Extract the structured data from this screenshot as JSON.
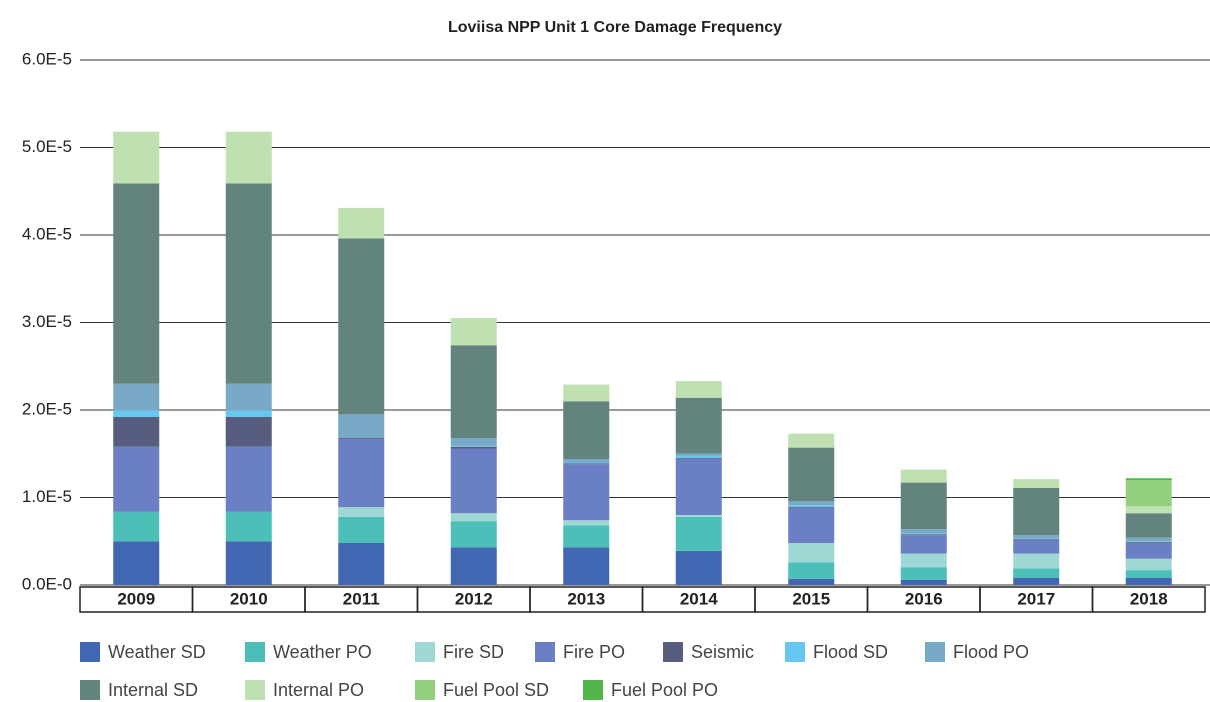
{
  "chart_data": {
    "type": "stacked_bar",
    "title": "Loviisa NPP Unit 1 Core Damage Frequency",
    "categories": [
      "2009",
      "2010",
      "2011",
      "2012",
      "2013",
      "2014",
      "2015",
      "2016",
      "2017",
      "2018"
    ],
    "series": [
      {
        "name": "Weather SD",
        "color": "#4267b2",
        "values": [
          5e-06,
          5e-06,
          4.8e-06,
          4.3e-06,
          4.3e-06,
          3.9e-06,
          7e-07,
          6e-07,
          8e-07,
          8e-07
        ]
      },
      {
        "name": "Weather PO",
        "color": "#4bbfb8",
        "values": [
          3.4e-06,
          3.4e-06,
          3e-06,
          3e-06,
          2.5e-06,
          3.9e-06,
          1.9e-06,
          1.4e-06,
          1.1e-06,
          9e-07
        ]
      },
      {
        "name": "Fire SD",
        "color": "#9fd7d4",
        "values": [
          0,
          0,
          1.1e-06,
          9e-07,
          6e-07,
          2e-07,
          2.2e-06,
          1.6e-06,
          1.7e-06,
          1.3e-06
        ]
      },
      {
        "name": "Fire PO",
        "color": "#6a7fc4",
        "values": [
          7.4e-06,
          7.4e-06,
          7.8e-06,
          7.4e-06,
          6.4e-06,
          6.4e-06,
          4e-06,
          2.1e-06,
          1.5e-06,
          1.8e-06
        ]
      },
      {
        "name": "Seismic",
        "color": "#575d7f",
        "values": [
          3.4e-06,
          3.4e-06,
          1e-07,
          2e-07,
          1e-07,
          1e-07,
          1e-07,
          1e-07,
          1e-07,
          1e-07
        ]
      },
      {
        "name": "Flood SD",
        "color": "#66c8f0",
        "values": [
          7e-07,
          7e-07,
          0,
          1e-07,
          1e-07,
          3e-07,
          2e-07,
          1e-07,
          1e-07,
          1e-07
        ]
      },
      {
        "name": "Flood PO",
        "color": "#78a9c6",
        "values": [
          3.1e-06,
          3.1e-06,
          2.7e-06,
          9e-07,
          4e-07,
          2e-07,
          5e-07,
          5e-07,
          4e-07,
          4e-07
        ]
      },
      {
        "name": "Internal SD",
        "color": "#63837f",
        "values": [
          2.29e-05,
          2.29e-05,
          2.01e-05,
          1.06e-05,
          6.6e-06,
          6.4e-06,
          6.1e-06,
          5.3e-06,
          5.4e-06,
          2.8e-06
        ]
      },
      {
        "name": "Internal PO",
        "color": "#bfe0b0",
        "values": [
          5.9e-06,
          5.9e-06,
          3.5e-06,
          3.1e-06,
          1.9e-06,
          1.9e-06,
          1.6e-06,
          1.5e-06,
          1e-06,
          8e-07
        ]
      },
      {
        "name": "Fuel Pool SD",
        "color": "#93cf7e",
        "values": [
          0,
          0,
          0,
          0,
          0,
          0,
          0,
          0,
          0,
          3e-06
        ]
      },
      {
        "name": "Fuel Pool PO",
        "color": "#52b54a",
        "values": [
          0,
          0,
          0,
          0,
          0,
          0,
          0,
          0,
          0,
          2e-07
        ]
      }
    ],
    "ylim": [
      0,
      6e-05
    ],
    "yticks": [
      {
        "value": 0,
        "label": "0.0E-0"
      },
      {
        "value": 1e-05,
        "label": "1.0E-5"
      },
      {
        "value": 2e-05,
        "label": "2.0E-5"
      },
      {
        "value": 3e-05,
        "label": "3.0E-5"
      },
      {
        "value": 4e-05,
        "label": "4.0E-5"
      },
      {
        "value": 5e-05,
        "label": "5.0E-5"
      },
      {
        "value": 6e-05,
        "label": "6.0E-5"
      }
    ],
    "grid": true
  }
}
